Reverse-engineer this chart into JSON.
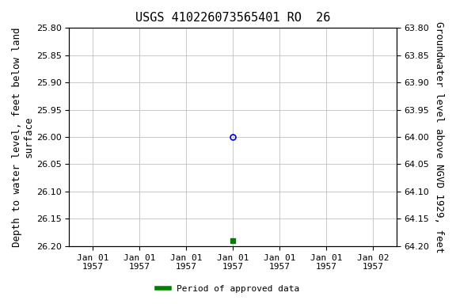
{
  "title": "USGS 410226073565401 RO  26",
  "ylabel_left": "Depth to water level, feet below land\nsurface",
  "ylabel_right": "Groundwater level above NGVD 1929, feet",
  "ylim_left": [
    25.8,
    26.2
  ],
  "ylim_right": [
    64.2,
    63.8
  ],
  "y_ticks_left": [
    25.8,
    25.85,
    25.9,
    25.95,
    26.0,
    26.05,
    26.1,
    26.15,
    26.2
  ],
  "y_ticks_right": [
    64.2,
    64.15,
    64.1,
    64.05,
    64.0,
    63.95,
    63.9,
    63.85,
    63.8
  ],
  "x_ticks": [
    0,
    1,
    2,
    3,
    4,
    5,
    6
  ],
  "x_tick_labels": [
    "Jan 01\n1957",
    "Jan 01\n1957",
    "Jan 01\n1957",
    "Jan 01\n1957",
    "Jan 01\n1957",
    "Jan 01\n1957",
    "Jan 02\n1957"
  ],
  "xlim": [
    -0.5,
    6.5
  ],
  "data_point_open": {
    "x": 3,
    "depth": 26.0,
    "color": "#0000cc"
  },
  "data_point_filled": {
    "x": 3,
    "depth": 26.19,
    "color": "#008000"
  },
  "legend_label": "Period of approved data",
  "legend_color": "#008000",
  "background_color": "#ffffff",
  "grid_color": "#c0c0c0",
  "title_fontsize": 11,
  "axis_fontsize": 9,
  "tick_fontsize": 8,
  "font_family": "monospace"
}
